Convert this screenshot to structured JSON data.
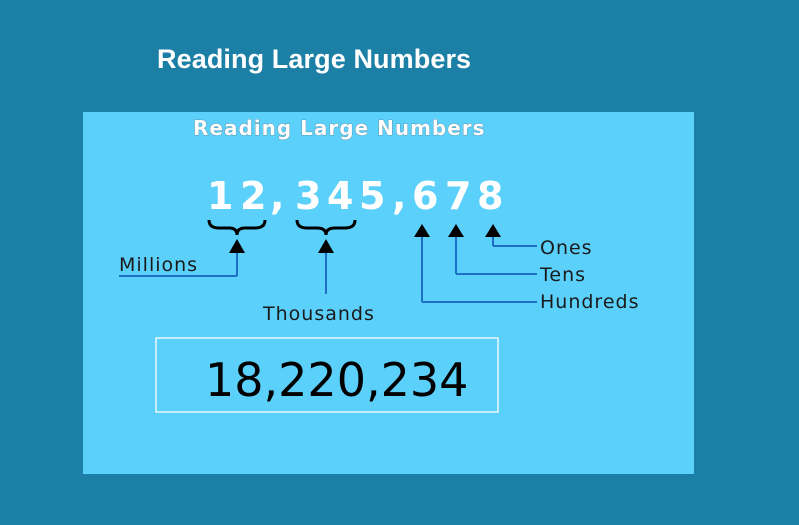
{
  "title": "Reading Large Numbers",
  "panel": {
    "heading": "Reading Large Numbers",
    "digits": [
      "1",
      "2",
      ",",
      "3",
      "4",
      "5",
      ",",
      "6",
      "7",
      "8"
    ],
    "labels": {
      "millions": "Millions",
      "thousands": "Thousands",
      "ones": "Ones",
      "tens": "Tens",
      "hundreds": "Hundreds"
    },
    "example": "18,220,234"
  },
  "colors": {
    "background": "#1c7fa6",
    "panel": "#5bd0fb",
    "arrow": "#1e6ec8",
    "brace": "#000000"
  }
}
